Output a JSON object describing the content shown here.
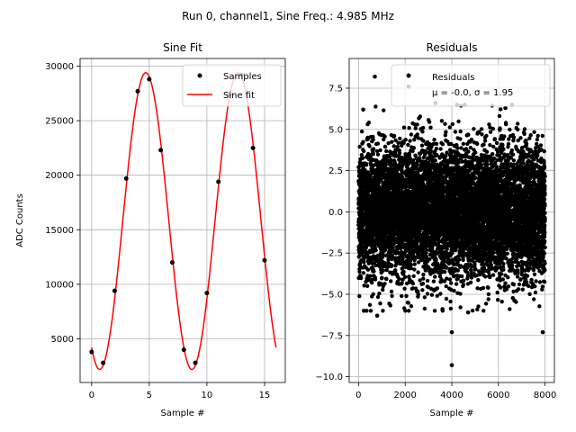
{
  "figure": {
    "suptitle": "Run 0, channel1, Sine Freq.: 4.985 MHz",
    "colors": {
      "samples": "#000000",
      "fit": "#ff0000",
      "residuals": "#000000",
      "grid": "#b0b0b0"
    }
  },
  "chart_data": [
    {
      "type": "scatter",
      "title": "Sine Fit",
      "xlabel": "Sample #",
      "ylabel": "ADC Counts",
      "xlim": [
        -1.0,
        16.8
      ],
      "ylim": [
        1000,
        30700
      ],
      "xticks": [
        0,
        5,
        10,
        15
      ],
      "yticks": [
        5000,
        10000,
        15000,
        20000,
        25000,
        30000
      ],
      "grid": true,
      "legend": "top-right",
      "series": [
        {
          "name": "Samples",
          "kind": "points",
          "x": [
            0,
            1,
            2,
            3,
            4,
            5,
            6,
            7,
            8,
            9,
            10,
            11,
            12,
            13,
            14,
            15
          ],
          "y": [
            3800,
            2800,
            9400,
            19700,
            27700,
            28800,
            22300,
            12000,
            4000,
            2800,
            9200,
            19400,
            27400,
            29200,
            22500,
            12200
          ]
        },
        {
          "name": "Sine fit",
          "kind": "line",
          "model": {
            "offset": 15800,
            "amplitude": 13600,
            "period": 8.0,
            "peak_at": 4.7,
            "x_range": [
              0,
              16
            ]
          }
        }
      ]
    },
    {
      "type": "scatter",
      "title": "Residuals",
      "xlabel": "Sample #",
      "ylabel": "",
      "xlim": [
        -400,
        8400
      ],
      "ylim": [
        -10.35,
        9.3
      ],
      "xticks": [
        0,
        2000,
        4000,
        6000,
        8000
      ],
      "yticks": [
        -10.0,
        -7.5,
        -5.0,
        -2.5,
        0.0,
        2.5,
        5.0,
        7.5
      ],
      "ytick_labels": [
        "−10.0",
        "−7.5",
        "−5.0",
        "−2.5",
        "0.0",
        "2.5",
        "5.0",
        "7.5"
      ],
      "grid": true,
      "legend": "top-right",
      "series": [
        {
          "name": "Residuals",
          "kind": "points",
          "count": 8000,
          "mean": -0.0,
          "sigma": 1.95,
          "outliers": [
            [
              700,
              8.2
            ],
            [
              2150,
              7.6
            ],
            [
              4000,
              -9.3
            ],
            [
              4000,
              -7.3
            ],
            [
              7900,
              -7.3
            ],
            [
              800,
              -6.3
            ],
            [
              3600,
              -5.9
            ],
            [
              4700,
              -6.1
            ],
            [
              230,
              -6.0
            ],
            [
              200,
              6.2
            ],
            [
              3300,
              6.6
            ],
            [
              6300,
              6.3
            ]
          ]
        }
      ],
      "legend_entries": {
        "label": "Residuals",
        "stats": "μ = -0.0, σ = 1.95"
      }
    }
  ]
}
